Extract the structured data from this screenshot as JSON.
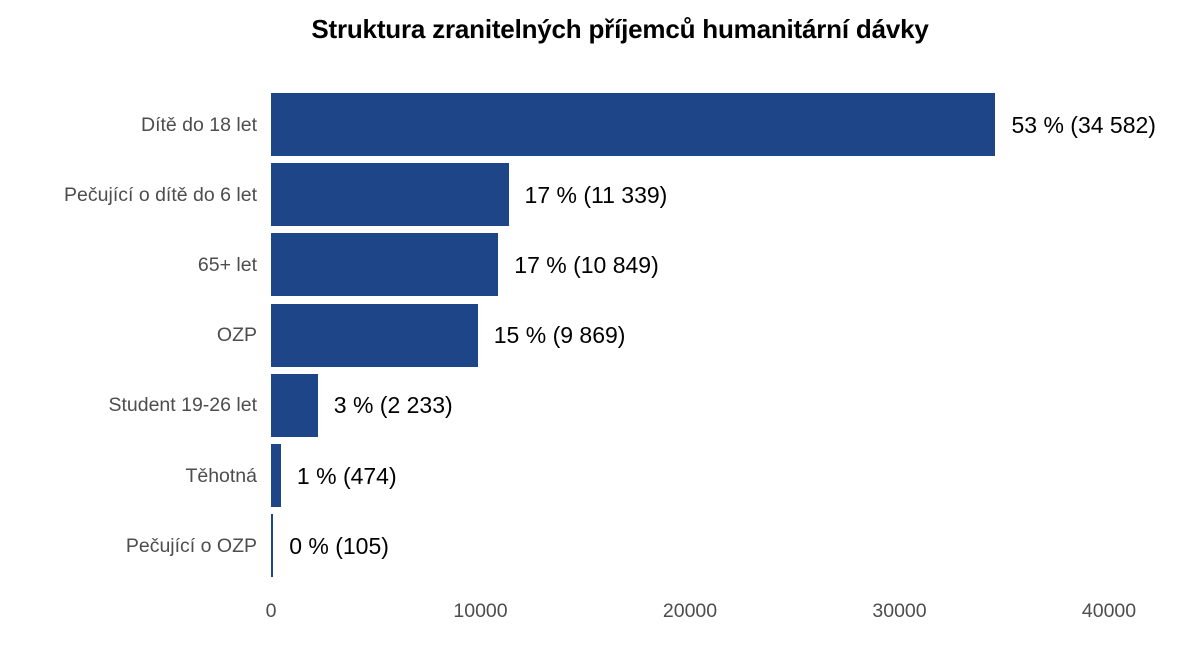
{
  "chart_data": {
    "type": "bar",
    "orientation": "horizontal",
    "title": "Struktura zranitelných příjemců humanitární dávky",
    "xlabel": "",
    "ylabel": "",
    "xlim": [
      0,
      40000
    ],
    "grid": false,
    "legend": null,
    "categories": [
      "Dítě do 18 let",
      "Pečující o dítě do 6 let",
      "65+ let",
      "OZP",
      "Student 19-26 let",
      "Těhotná",
      "Pečující o OZP"
    ],
    "values": [
      34582,
      11339,
      10849,
      9869,
      2233,
      474,
      105
    ],
    "percentages": [
      53,
      17,
      17,
      15,
      3,
      1,
      0
    ],
    "data_labels": [
      "53 % (34 582)",
      "17 % (11 339)",
      "17 % (10 849)",
      "15 % (9 869)",
      "3 % (2 233)",
      "1 % (474)",
      "0 % (105)"
    ],
    "x_ticks": [
      "0",
      "10000",
      "20000",
      "30000",
      "40000"
    ],
    "bar_color": "#1f4589"
  }
}
